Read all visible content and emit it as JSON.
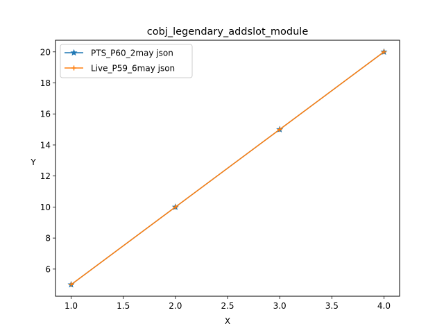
{
  "chart_data": {
    "type": "line",
    "title": "cobj_legendary_addslot_module",
    "xlabel": "X",
    "ylabel": "Y",
    "x": [
      1.0,
      2.0,
      3.0,
      4.0
    ],
    "xlim": [
      0.85,
      4.15
    ],
    "ylim": [
      4.25,
      20.75
    ],
    "xticks": [
      1.0,
      1.5,
      2.0,
      2.5,
      3.0,
      3.5,
      4.0
    ],
    "xtick_labels": [
      "1.0",
      "1.5",
      "2.0",
      "2.5",
      "3.0",
      "3.5",
      "4.0"
    ],
    "yticks": [
      6,
      8,
      10,
      12,
      14,
      16,
      18,
      20
    ],
    "ytick_labels": [
      "6",
      "8",
      "10",
      "12",
      "14",
      "16",
      "18",
      "20"
    ],
    "grid": false,
    "legend_position": "top-left",
    "series": [
      {
        "name": "PTS_P60_2may json",
        "values": [
          5,
          10,
          15,
          20
        ],
        "color": "#1f77b4",
        "marker": "star"
      },
      {
        "name": "Live_P59_6may json",
        "values": [
          5,
          10,
          15,
          20
        ],
        "color": "#ff7f0e",
        "marker": "plus"
      }
    ]
  }
}
